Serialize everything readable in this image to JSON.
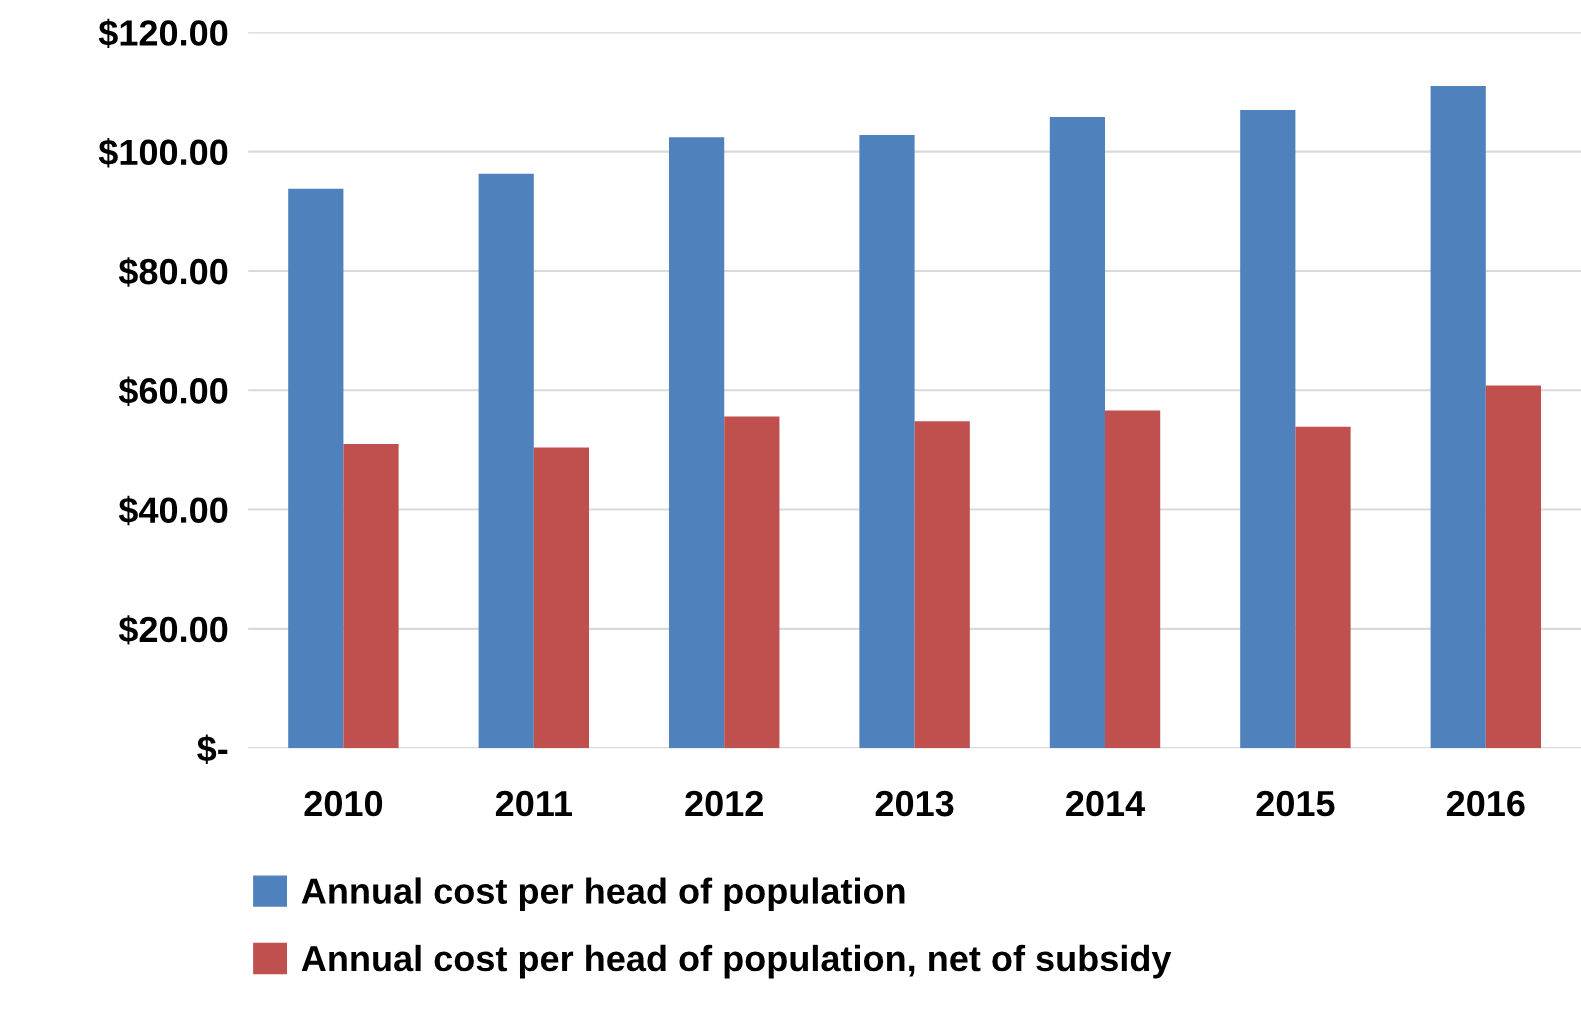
{
  "chart_data": {
    "type": "bar",
    "categories": [
      "2010",
      "2011",
      "2012",
      "2013",
      "2014",
      "2015",
      "2016"
    ],
    "series": [
      {
        "name": "Annual cost per head of population",
        "color": "#4f81bd",
        "values": [
          93.8,
          96.3,
          102.4,
          102.8,
          105.8,
          107,
          111
        ]
      },
      {
        "name": "Annual cost per head of population, net of subsidy",
        "color": "#c0504d",
        "values": [
          51,
          50.4,
          55.6,
          54.8,
          56.6,
          53.9,
          60.8
        ]
      }
    ],
    "ylim": [
      0,
      120
    ],
    "yticks": [
      {
        "value": 0,
        "label": "$-"
      },
      {
        "value": 20,
        "label": "$20.00"
      },
      {
        "value": 40,
        "label": "$40.00"
      },
      {
        "value": 60,
        "label": "$60.00"
      },
      {
        "value": 80,
        "label": "$80.00"
      },
      {
        "value": 100,
        "label": "$100.00"
      },
      {
        "value": 120,
        "label": "$120.00"
      }
    ],
    "grid": "y",
    "legend": "bottom"
  }
}
